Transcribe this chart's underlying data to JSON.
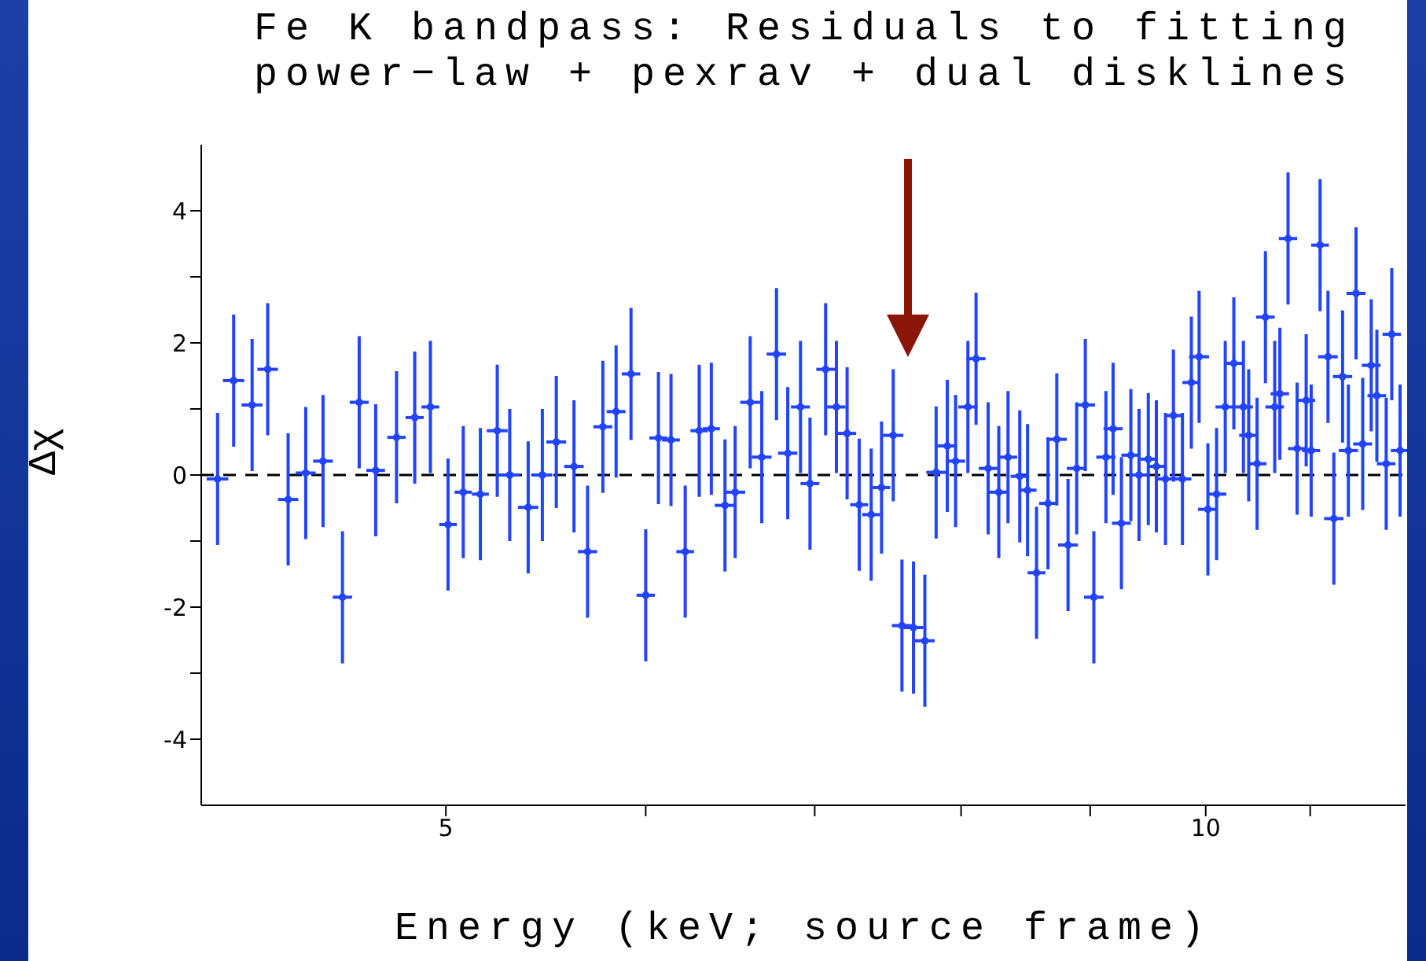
{
  "chart_data": {
    "type": "scatter",
    "title": "Fe K bandpass: Residuals to fitting\npower−law + pexrav + dual disklines",
    "xlabel": "Energy (keV; source frame)",
    "ylabel": "Δχ",
    "color": "#2244ff",
    "log": "x",
    "xlim": [
      4,
      12
    ],
    "xticks": [
      5,
      {
        "value": 6,
        "label": null
      },
      {
        "value": 7,
        "label": null
      },
      {
        "value": 8,
        "label": null
      },
      {
        "value": 9,
        "label": null
      },
      10,
      {
        "value": 11,
        "label": null
      }
    ],
    "ylim": [
      -5,
      5
    ],
    "yticks": [
      -4,
      {
        "value": -3,
        "label": null
      },
      -2,
      {
        "value": -1,
        "label": null
      },
      0,
      {
        "value": 1,
        "label": null
      },
      2,
      {
        "value": 3,
        "label": null
      },
      4
    ],
    "ref_lines": [
      {
        "axis": "y",
        "value": 0,
        "color": "#000000",
        "line_style": "dashed"
      }
    ],
    "x": [
      4.06,
      4.12,
      4.19,
      4.25,
      4.33,
      4.4,
      4.47,
      4.55,
      4.62,
      4.69,
      4.78,
      4.86,
      4.93,
      5.01,
      5.08,
      5.16,
      5.24,
      5.3,
      5.39,
      5.46,
      5.53,
      5.62,
      5.69,
      5.77,
      5.84,
      5.92,
      6.0,
      6.07,
      6.14,
      6.22,
      6.3,
      6.37,
      6.45,
      6.51,
      6.6,
      6.67,
      6.76,
      6.83,
      6.91,
      6.97,
      7.07,
      7.14,
      7.21,
      7.29,
      7.37,
      7.44,
      7.52,
      7.58,
      7.66,
      7.74,
      7.82,
      7.9,
      7.96,
      8.05,
      8.11,
      8.2,
      8.28,
      8.35,
      8.44,
      8.5,
      8.57,
      8.66,
      8.73,
      8.82,
      8.89,
      8.96,
      9.03,
      9.13,
      9.19,
      9.26,
      9.34,
      9.41,
      9.49,
      9.56,
      9.64,
      9.71,
      9.79,
      9.87,
      9.94,
      10.02,
      10.1,
      10.18,
      10.26,
      10.35,
      10.4,
      10.48,
      10.56,
      10.65,
      10.7,
      10.78,
      10.87,
      10.96,
      11.01,
      11.1,
      11.18,
      11.24,
      11.33,
      11.39,
      11.47,
      11.54,
      11.63,
      11.69,
      11.79,
      11.85,
      11.94
    ],
    "values": [
      -0.06,
      1.43,
      1.06,
      1.6,
      -0.37,
      0.03,
      0.21,
      -1.85,
      1.1,
      0.07,
      0.57,
      0.87,
      1.03,
      -0.75,
      -0.26,
      -0.29,
      0.67,
      0,
      -0.49,
      0,
      0.5,
      0.13,
      -1.16,
      0.73,
      0.96,
      1.53,
      -1.82,
      0.56,
      0.53,
      -1.16,
      0.67,
      0.7,
      -0.46,
      -0.26,
      1.1,
      0.27,
      1.83,
      0.33,
      1.03,
      -0.13,
      1.6,
      1.03,
      0.63,
      -0.45,
      -0.6,
      -0.19,
      0.6,
      -2.28,
      -2.31,
      -2.51,
      0.04,
      0.44,
      0.21,
      1.03,
      1.76,
      0.1,
      -0.26,
      0.27,
      -0.02,
      -0.23,
      -1.48,
      -0.43,
      0.54,
      -1.06,
      0.1,
      1.06,
      -1.85,
      0.27,
      0.7,
      -0.73,
      0.3,
      0,
      0.24,
      0.13,
      -0.06,
      0.9,
      -0.06,
      1.4,
      1.79,
      -0.52,
      -0.29,
      1.03,
      1.69,
      1.03,
      0.6,
      0.17,
      2.39,
      1.03,
      1.23,
      3.58,
      0.4,
      1.13,
      0.37,
      3.48,
      1.79,
      -0.66,
      1.49,
      0.37,
      2.75,
      0.47,
      1.66,
      1.2,
      0.17,
      2.13,
      0.37
    ],
    "errors": [
      1,
      1,
      1,
      1,
      1,
      1,
      1,
      1,
      1,
      1,
      1,
      1,
      1,
      1,
      1,
      1,
      1,
      1,
      1,
      1,
      1,
      1,
      1,
      1,
      1,
      1,
      1,
      1,
      1,
      1,
      1,
      1,
      1,
      1,
      1,
      1,
      1,
      1,
      1,
      1,
      1,
      1,
      1,
      1,
      1,
      1,
      1,
      1,
      1,
      1,
      1,
      1,
      1,
      1,
      1,
      1,
      1,
      1,
      1,
      1,
      1,
      1,
      1,
      1,
      1,
      1,
      1,
      1,
      1,
      1,
      1,
      1,
      1,
      1,
      1,
      1,
      1,
      1,
      1,
      1,
      1,
      1,
      1,
      1,
      1,
      1,
      1,
      1,
      1,
      1,
      1,
      1,
      1,
      1,
      1,
      1,
      1,
      1,
      1,
      1,
      1,
      1,
      1,
      1,
      1
    ],
    "xerrors": [
      0.04,
      0.04,
      0.04,
      0.04,
      0.04,
      0.04,
      0.04,
      0.04,
      0.04,
      0.04,
      0.04,
      0.04,
      0.04,
      0.04,
      0.04,
      0.04,
      0.05,
      0.05,
      0.05,
      0.05,
      0.05,
      0.05,
      0.05,
      0.05,
      0.05,
      0.05,
      0.05,
      0.05,
      0.05,
      0.05,
      0.05,
      0.05,
      0.06,
      0.06,
      0.06,
      0.06,
      0.06,
      0.06,
      0.06,
      0.06,
      0.06,
      0.06,
      0.06,
      0.06,
      0.06,
      0.06,
      0.07,
      0.07,
      0.07,
      0.07,
      0.07,
      0.07,
      0.07,
      0.07,
      0.07,
      0.07,
      0.07,
      0.07,
      0.07,
      0.07,
      0.07,
      0.07,
      0.08,
      0.08,
      0.08,
      0.08,
      0.08,
      0.08,
      0.08,
      0.08,
      0.08,
      0.08,
      0.08,
      0.08,
      0.08,
      0.08,
      0.08,
      0.08,
      0.09,
      0.09,
      0.09,
      0.09,
      0.09,
      0.09,
      0.09,
      0.09,
      0.09,
      0.09,
      0.09,
      0.09,
      0.09,
      0.09,
      0.09,
      0.09,
      0.1,
      0.1,
      0.1,
      0.1,
      0.1,
      0.1,
      0.1,
      0.1,
      0.1,
      0.1,
      0.1
    ]
  }
}
